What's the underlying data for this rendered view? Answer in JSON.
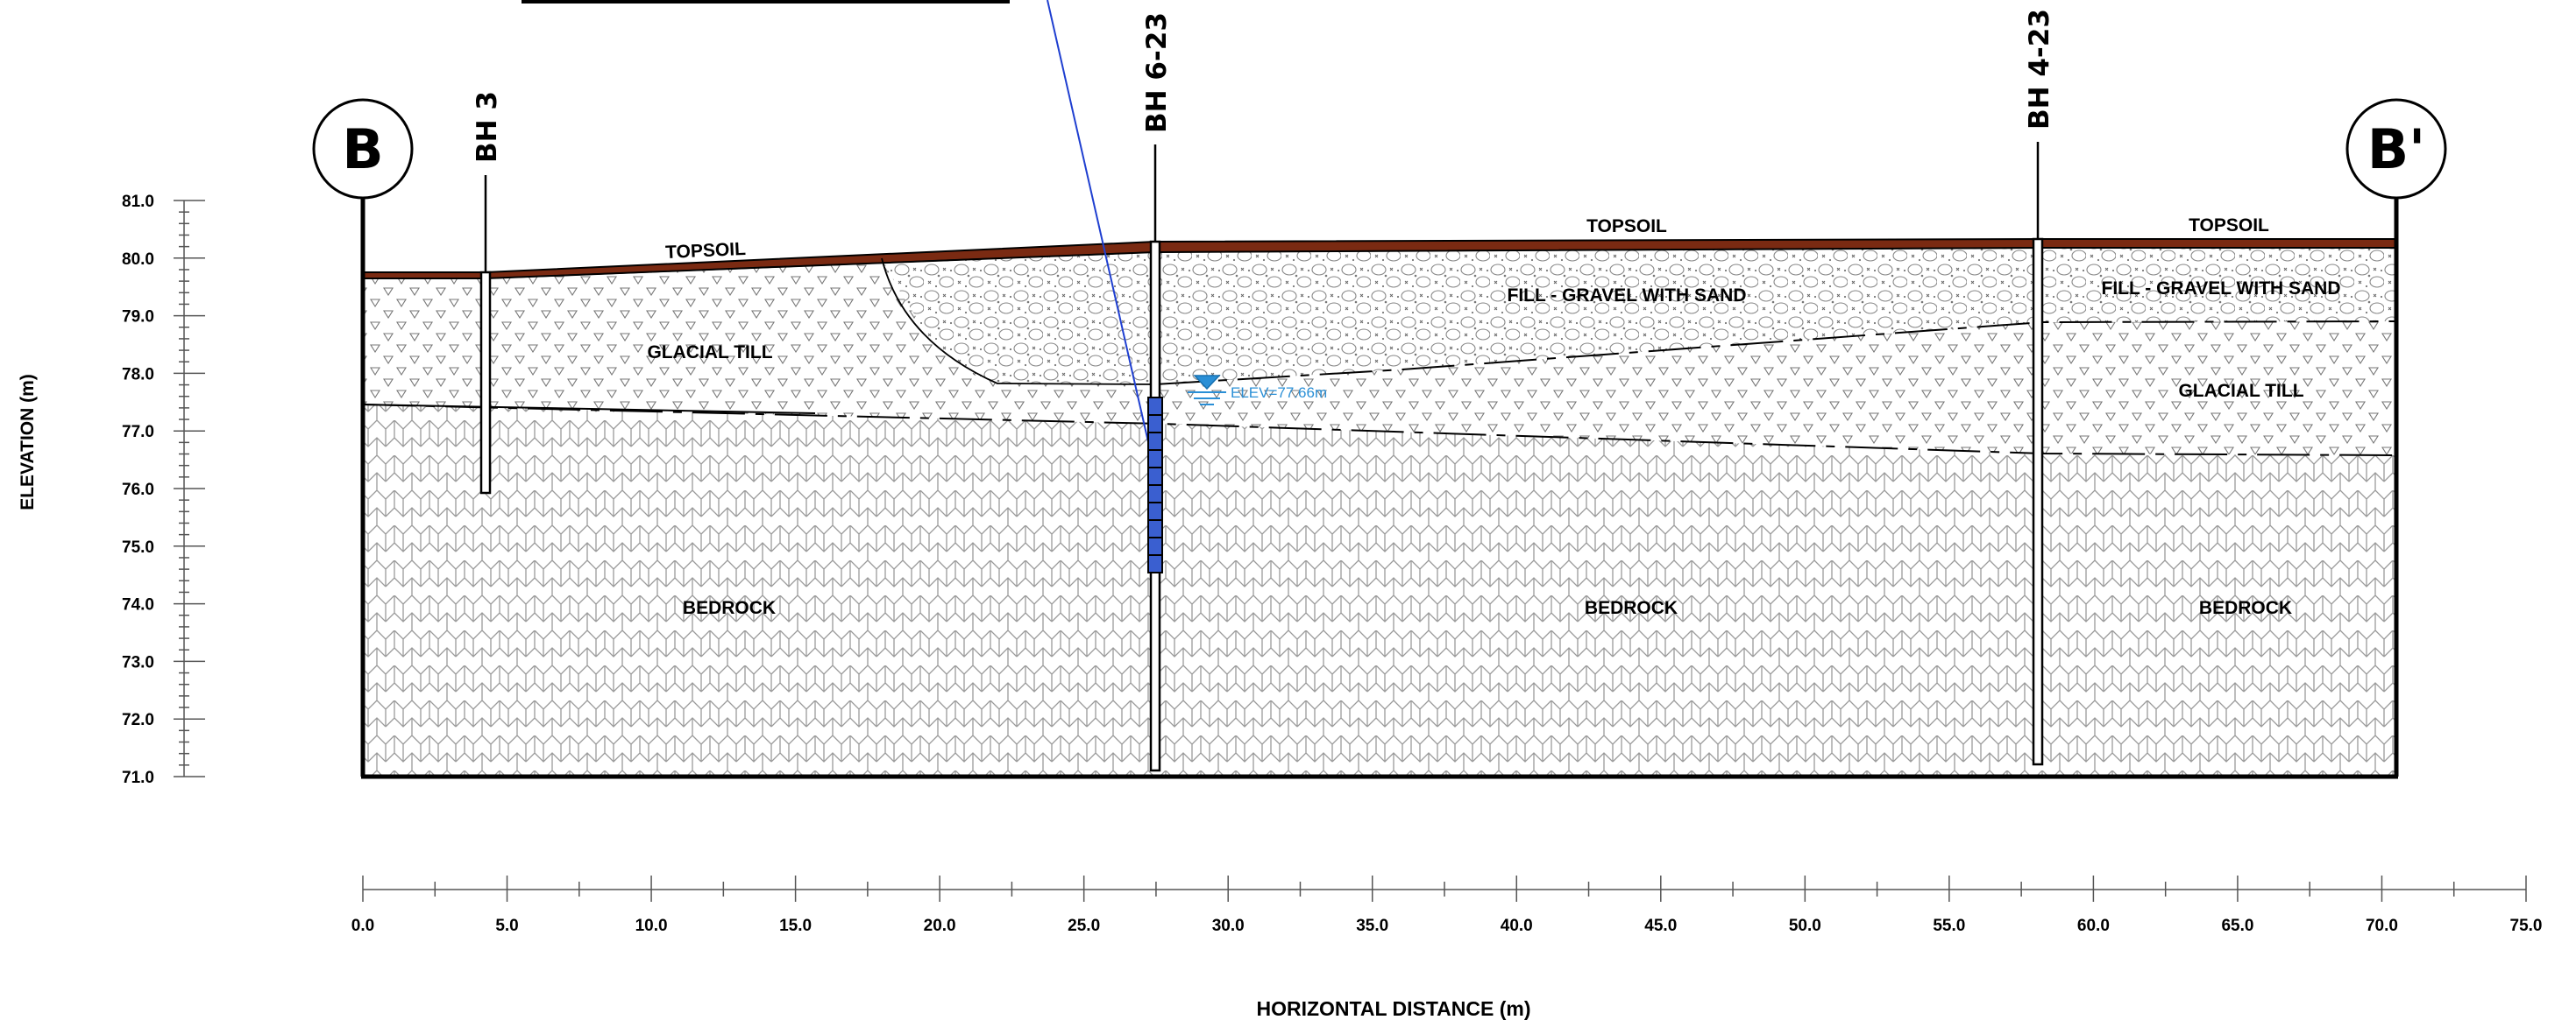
{
  "section": {
    "start_marker": "B",
    "end_marker": "B'",
    "y_axis_title": "ELEVATION (m)",
    "x_axis_title": "HORIZONTAL DISTANCE (m)",
    "y_ticks": [
      "81.0",
      "80.0",
      "79.0",
      "78.0",
      "77.0",
      "76.0",
      "75.0",
      "74.0",
      "73.0",
      "72.0",
      "71.0"
    ],
    "x_ticks": [
      "0.0",
      "5.0",
      "10.0",
      "15.0",
      "20.0",
      "25.0",
      "30.0",
      "35.0",
      "40.0",
      "45.0",
      "50.0",
      "55.0",
      "60.0",
      "65.0",
      "70.0",
      "75.0"
    ]
  },
  "boreholes": [
    {
      "label": "BH 3"
    },
    {
      "label": "BH 6-23"
    },
    {
      "label": "BH 4-23"
    }
  ],
  "layers": {
    "topsoil": [
      "TOPSOIL",
      "TOPSOIL",
      "TOPSOIL"
    ],
    "fill": [
      "FILL - GRAVEL WITH SAND",
      "FILL - GRAVEL WITH SAND"
    ],
    "glacial_till": [
      "GLACIAL TILL",
      "GLACIAL TILL"
    ],
    "bedrock": [
      "BEDROCK",
      "BEDROCK",
      "BEDROCK"
    ]
  },
  "water_level": {
    "label": "ELEV=77.66m"
  },
  "colors": {
    "topsoil": "#7a2a12",
    "water": "#2a8fd6",
    "screen": "#3a5fd0",
    "leader": "#1f3fd0",
    "line": "#000000"
  }
}
